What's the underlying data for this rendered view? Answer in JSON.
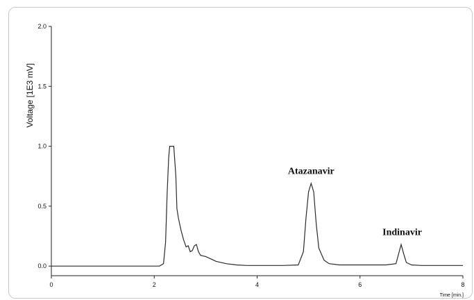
{
  "chart_data": {
    "type": "line",
    "xlabel": "Time [min.]",
    "ylabel": "Voltage [1E3 mV]",
    "xlim": [
      0,
      8
    ],
    "ylim": [
      -0.08,
      2.0
    ],
    "x_ticks": [
      "0",
      "2",
      "4",
      "6",
      "8"
    ],
    "y_ticks": [
      "0.0",
      "0.5",
      "1.0",
      "1.5",
      "2.0"
    ],
    "grid": false,
    "annotations": [
      {
        "text": "Atazanavir",
        "x": 5.05,
        "y": 0.77
      },
      {
        "text": "Indinavir",
        "x": 6.82,
        "y": 0.26
      }
    ],
    "series": [
      {
        "x": [
          0,
          2.1,
          2.18,
          2.22,
          2.25,
          2.28,
          2.3,
          2.33,
          2.38,
          2.42,
          2.44,
          2.47,
          2.52,
          2.57,
          2.62,
          2.66,
          2.7,
          2.74,
          2.78,
          2.82,
          2.86,
          2.9,
          3.0,
          3.1,
          3.2,
          3.4,
          3.6,
          3.8,
          4.0,
          4.5,
          4.8,
          4.9,
          4.95,
          5.0,
          5.05,
          5.1,
          5.15,
          5.2,
          5.3,
          5.4,
          5.6,
          6.0,
          6.5,
          6.7,
          6.75,
          6.8,
          6.85,
          6.9,
          7.0,
          7.2,
          8.0
        ],
        "y": [
          0.0,
          0.0,
          0.02,
          0.2,
          0.6,
          0.9,
          1.0,
          1.0,
          1.0,
          0.75,
          0.48,
          0.4,
          0.3,
          0.22,
          0.16,
          0.17,
          0.12,
          0.13,
          0.17,
          0.18,
          0.12,
          0.09,
          0.08,
          0.06,
          0.04,
          0.02,
          0.01,
          0.005,
          0.005,
          0.005,
          0.01,
          0.12,
          0.4,
          0.62,
          0.69,
          0.62,
          0.35,
          0.15,
          0.05,
          0.02,
          0.01,
          0.01,
          0.01,
          0.02,
          0.1,
          0.18,
          0.1,
          0.03,
          0.01,
          0.005,
          0.005
        ]
      }
    ]
  }
}
